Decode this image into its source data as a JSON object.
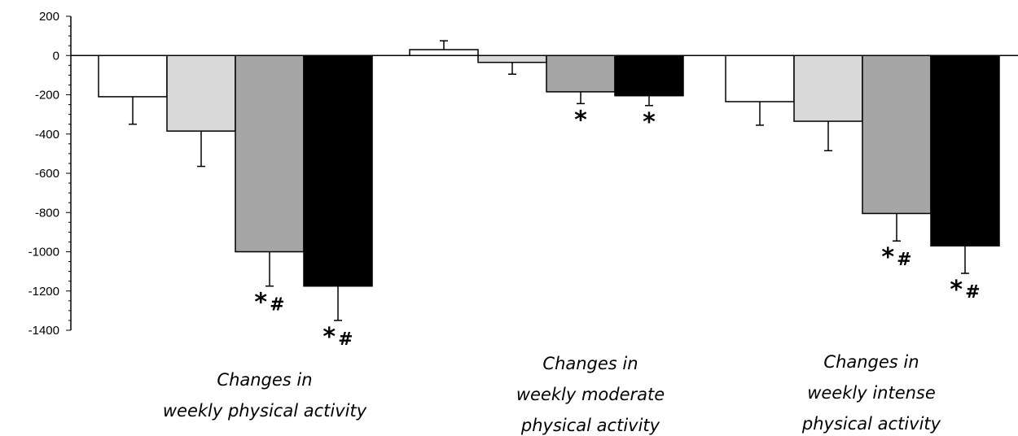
{
  "chart_data": {
    "type": "bar",
    "title": "",
    "xlabel": "",
    "ylabel": "",
    "ylim": [
      -1400,
      200
    ],
    "yticks": [
      200,
      0,
      -200,
      -400,
      -600,
      -800,
      -1000,
      -1200,
      -1400
    ],
    "grid": false,
    "legend": "none",
    "groups": [
      {
        "label_lines": [
          "Changes in",
          "weekly physical activity"
        ],
        "bars": [
          {
            "value": -210,
            "error": 140,
            "color": "#ffffff",
            "sig": ""
          },
          {
            "value": -385,
            "error": 180,
            "color": "#d9d9d9",
            "sig": ""
          },
          {
            "value": -1000,
            "error": 175,
            "color": "#a6a6a6",
            "sig": "*#"
          },
          {
            "value": -1175,
            "error": 175,
            "color": "#000000",
            "sig": "*#"
          }
        ]
      },
      {
        "label_lines": [
          "Changes in",
          "weekly moderate",
          "physical activity"
        ],
        "bars": [
          {
            "value": 30,
            "error": 45,
            "color": "#ffffff",
            "sig": ""
          },
          {
            "value": -35,
            "error": 60,
            "color": "#d9d9d9",
            "sig": ""
          },
          {
            "value": -185,
            "error": 60,
            "color": "#a6a6a6",
            "sig": "*"
          },
          {
            "value": -205,
            "error": 50,
            "color": "#000000",
            "sig": "*"
          }
        ]
      },
      {
        "label_lines": [
          "Changes in",
          "weekly intense",
          "physical activity"
        ],
        "bars": [
          {
            "value": -235,
            "error": 120,
            "color": "#ffffff",
            "sig": ""
          },
          {
            "value": -335,
            "error": 150,
            "color": "#d9d9d9",
            "sig": ""
          },
          {
            "value": -805,
            "error": 140,
            "color": "#a6a6a6",
            "sig": "*#"
          },
          {
            "value": -970,
            "error": 140,
            "color": "#000000",
            "sig": "*#"
          }
        ]
      }
    ]
  }
}
